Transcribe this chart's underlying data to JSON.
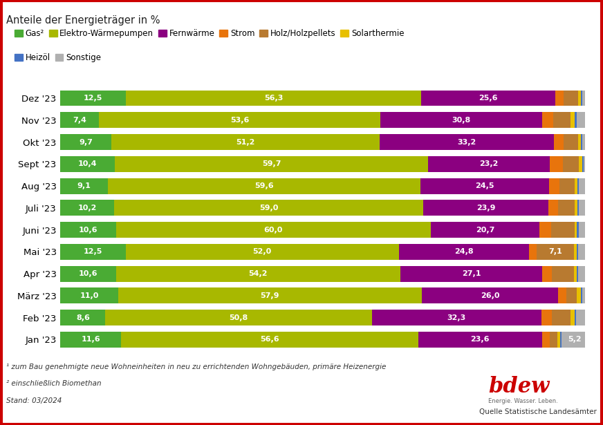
{
  "title": "Anteile der Energieträger in %",
  "months": [
    "Dez '23",
    "Nov '23",
    "Okt '23",
    "Sept '23",
    "Aug '23",
    "Juli '23",
    "Juni '23",
    "Mai '23",
    "Apr '23",
    "März '23",
    "Feb '23",
    "Jan '23"
  ],
  "categories": [
    "Gas²",
    "Elektro-Wärmepumpen",
    "Fernwärme",
    "Strom",
    "Holz/Holzpellets",
    "Solarthermie",
    "Heizöl",
    "Sonstige"
  ],
  "colors": [
    "#4aab34",
    "#a8b800",
    "#8b0080",
    "#e8740c",
    "#b87a30",
    "#e8c000",
    "#4472c4",
    "#b0b0b0"
  ],
  "data": {
    "Gas²": [
      12.5,
      7.4,
      9.7,
      10.4,
      9.1,
      10.2,
      10.6,
      12.5,
      10.6,
      11.0,
      8.6,
      11.6
    ],
    "Elektro-Wärmepumpen": [
      56.3,
      53.6,
      51.2,
      59.7,
      59.6,
      59.0,
      60.0,
      52.0,
      54.2,
      57.9,
      50.8,
      56.6
    ],
    "Fernwärme": [
      25.6,
      30.8,
      33.2,
      23.2,
      24.5,
      23.9,
      20.7,
      24.8,
      27.1,
      26.0,
      32.3,
      23.6
    ],
    "Strom": [
      1.5,
      2.2,
      1.8,
      2.5,
      2.0,
      1.8,
      2.2,
      1.5,
      1.8,
      1.5,
      2.0,
      1.5
    ],
    "Holz/Holzpellets": [
      2.8,
      3.2,
      2.8,
      3.0,
      2.8,
      3.2,
      4.5,
      7.1,
      4.2,
      2.0,
      3.5,
      1.5
    ],
    "Solarthermie": [
      0.5,
      0.8,
      0.5,
      0.7,
      0.6,
      0.5,
      0.5,
      0.5,
      0.5,
      0.8,
      0.8,
      0.5
    ],
    "Heizöl": [
      0.3,
      0.5,
      0.3,
      0.2,
      0.3,
      0.3,
      0.3,
      0.3,
      0.3,
      0.3,
      0.3,
      0.2
    ],
    "Sonstige": [
      0.5,
      1.5,
      0.5,
      0.3,
      1.1,
      1.1,
      1.2,
      1.3,
      1.3,
      0.5,
      1.7,
      5.2
    ]
  },
  "show_labels": {
    "Gas²": [
      12.5,
      7.4,
      9.7,
      10.4,
      9.1,
      10.2,
      10.6,
      12.5,
      10.6,
      11.0,
      8.6,
      11.6
    ],
    "Elektro-Wärmepumpen": [
      56.3,
      53.6,
      51.2,
      59.7,
      59.6,
      59.0,
      60.0,
      52.0,
      54.2,
      57.9,
      50.8,
      56.6
    ],
    "Fernwärme": [
      25.6,
      30.8,
      33.2,
      23.2,
      24.5,
      23.9,
      20.7,
      24.8,
      27.1,
      26.0,
      32.3,
      23.6
    ],
    "Strom": [
      null,
      null,
      null,
      null,
      null,
      null,
      null,
      null,
      null,
      null,
      null,
      null
    ],
    "Holz/Holzpellets": [
      null,
      null,
      null,
      null,
      null,
      null,
      null,
      7.1,
      null,
      null,
      null,
      null
    ],
    "Solarthermie": [
      null,
      null,
      null,
      null,
      null,
      null,
      null,
      null,
      null,
      null,
      null,
      null
    ],
    "Heizöl": [
      null,
      null,
      null,
      null,
      null,
      null,
      null,
      null,
      null,
      null,
      null,
      null
    ],
    "Sonstige": [
      null,
      null,
      null,
      null,
      null,
      null,
      null,
      null,
      null,
      null,
      null,
      5.2
    ]
  },
  "footnote1": "¹ zum Bau genehmigte neue Wohneinheiten in neu zu errichtenden Wohngebäuden, primäre Heizenergie",
  "footnote2": "² einschließlich Biomethan",
  "footnote3": "Stand: 03/2024",
  "source": "Quelle Statistische Landesämter",
  "background_color": "#ffffff",
  "border_color": "#cc0000"
}
